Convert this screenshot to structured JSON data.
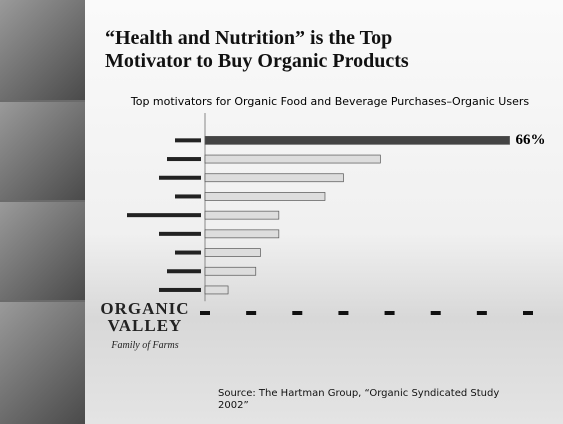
{
  "chart_data": {
    "type": "bar",
    "orientation": "horizontal",
    "title": "“Health and Nutrition” is the Top Motivator to Buy Organic Products",
    "subtitle": "Top motivators for Organic Food and Beverage Purchases–Organic Users",
    "categories": [
      null,
      null,
      null,
      null,
      null,
      null,
      null,
      null,
      null
    ],
    "values": [
      66,
      38,
      30,
      26,
      16,
      16,
      12,
      11,
      5
    ],
    "value_labels": [
      "66%",
      null,
      null,
      null,
      null,
      null,
      null,
      null,
      null
    ],
    "colors": [
      "#444444",
      "#dddddd",
      "#dddddd",
      "#dddddd",
      "#dddddd",
      "#dddddd",
      "#dddddd",
      "#dddddd",
      "#dddddd"
    ],
    "xlim": [
      0,
      70
    ],
    "xticks": [
      0,
      10,
      20,
      30,
      40,
      50,
      60,
      70
    ],
    "source": "Source: The Hartman Group, “Organic Syndicated Study 2002”"
  },
  "logo": {
    "line1": "ORGANIC",
    "line2": "VALLEY",
    "tagline": "Family of Farms"
  }
}
